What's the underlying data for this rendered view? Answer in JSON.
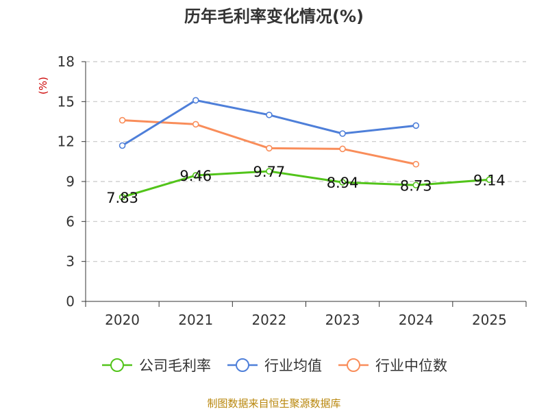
{
  "chart_data": {
    "type": "line",
    "title": "历年毛利率变化情况(%)",
    "ylabel": "(%)",
    "xlabel": "",
    "categories": [
      "2020",
      "2021",
      "2022",
      "2023",
      "2024",
      "2025"
    ],
    "ylim": [
      0,
      18
    ],
    "yticks": [
      0,
      3,
      6,
      9,
      12,
      15,
      18
    ],
    "grid": true,
    "legend_position": "bottom",
    "series": [
      {
        "name": "公司毛利率",
        "color": "#52c41a",
        "values": [
          7.83,
          9.46,
          9.77,
          8.94,
          8.73,
          9.14
        ],
        "labels": [
          "7.83",
          "9.46",
          "9.77",
          "8.94",
          "8.73",
          "9.14"
        ]
      },
      {
        "name": "行业均值",
        "color": "#4e7fd9",
        "values": [
          11.7,
          15.1,
          14.0,
          12.6,
          13.2,
          null
        ]
      },
      {
        "name": "行业中位数",
        "color": "#f98d5a",
        "values": [
          13.6,
          13.3,
          11.5,
          11.45,
          10.3,
          null
        ]
      }
    ]
  },
  "source": "制图数据来自恒生聚源数据库"
}
